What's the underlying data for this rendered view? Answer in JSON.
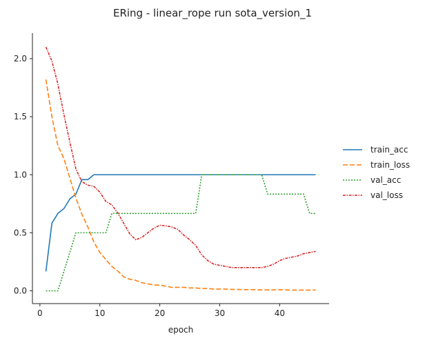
{
  "chart_data": {
    "type": "line",
    "title": "ERing - linear_rope run sota_version_1",
    "xlabel": "epoch",
    "ylabel": "",
    "xlim": [
      -1.25,
      48.25
    ],
    "ylim": [
      -0.11,
      2.22
    ],
    "xticks": [
      0,
      10,
      20,
      30,
      40
    ],
    "yticks": [
      0.0,
      0.5,
      1.0,
      1.5,
      2.0
    ],
    "yticklabels": [
      "0.0",
      "0.5",
      "1.0",
      "1.5",
      "2.0"
    ],
    "grid": false,
    "legend_position": "right",
    "x": [
      1,
      2,
      3,
      4,
      5,
      6,
      7,
      8,
      9,
      10,
      11,
      12,
      13,
      14,
      15,
      16,
      17,
      18,
      19,
      20,
      21,
      22,
      23,
      24,
      25,
      26,
      27,
      28,
      29,
      30,
      31,
      32,
      33,
      34,
      35,
      36,
      37,
      38,
      39,
      40,
      41,
      42,
      43,
      44,
      45,
      46
    ],
    "series": [
      {
        "name": "train_acc",
        "color": "#1f77b4",
        "dash": "",
        "values": [
          0.167,
          0.583,
          0.667,
          0.708,
          0.792,
          0.833,
          0.958,
          0.958,
          1.0,
          1.0,
          1.0,
          1.0,
          1.0,
          1.0,
          1.0,
          1.0,
          1.0,
          1.0,
          1.0,
          1.0,
          1.0,
          1.0,
          1.0,
          1.0,
          1.0,
          1.0,
          1.0,
          1.0,
          1.0,
          1.0,
          1.0,
          1.0,
          1.0,
          1.0,
          1.0,
          1.0,
          1.0,
          1.0,
          1.0,
          1.0,
          1.0,
          1.0,
          1.0,
          1.0,
          1.0,
          1.0
        ]
      },
      {
        "name": "train_loss",
        "color": "#ff7f0e",
        "dash": "7,3",
        "values": [
          1.82,
          1.5,
          1.25,
          1.14,
          0.97,
          0.8,
          0.66,
          0.55,
          0.42,
          0.33,
          0.27,
          0.21,
          0.17,
          0.12,
          0.1,
          0.09,
          0.07,
          0.06,
          0.05,
          0.05,
          0.04,
          0.03,
          0.03,
          0.03,
          0.025,
          0.025,
          0.02,
          0.02,
          0.015,
          0.015,
          0.015,
          0.012,
          0.012,
          0.01,
          0.01,
          0.01,
          0.008,
          0.008,
          0.008,
          0.01,
          0.008,
          0.006,
          0.006,
          0.006,
          0.006,
          0.006
        ]
      },
      {
        "name": "val_acc",
        "color": "#2ca02c",
        "dash": "2,2",
        "values": [
          0.0,
          0.0,
          0.0,
          0.167,
          0.333,
          0.5,
          0.5,
          0.5,
          0.5,
          0.5,
          0.5,
          0.667,
          0.667,
          0.667,
          0.667,
          0.667,
          0.667,
          0.667,
          0.667,
          0.667,
          0.667,
          0.667,
          0.667,
          0.667,
          0.667,
          0.667,
          1.0,
          1.0,
          1.0,
          1.0,
          1.0,
          1.0,
          1.0,
          1.0,
          1.0,
          1.0,
          1.0,
          0.833,
          0.833,
          0.833,
          0.833,
          0.833,
          0.833,
          0.833,
          0.667,
          0.667
        ]
      },
      {
        "name": "val_loss",
        "color": "#d62728",
        "dash": "4,1.5,1.5,1.5",
        "values": [
          2.1,
          1.98,
          1.78,
          1.52,
          1.28,
          1.05,
          0.94,
          0.91,
          0.9,
          0.85,
          0.77,
          0.74,
          0.67,
          0.58,
          0.49,
          0.44,
          0.46,
          0.5,
          0.54,
          0.565,
          0.56,
          0.55,
          0.53,
          0.48,
          0.44,
          0.39,
          0.31,
          0.26,
          0.23,
          0.22,
          0.21,
          0.2,
          0.2,
          0.2,
          0.2,
          0.2,
          0.2,
          0.21,
          0.23,
          0.26,
          0.28,
          0.29,
          0.3,
          0.32,
          0.33,
          0.34
        ]
      }
    ]
  }
}
